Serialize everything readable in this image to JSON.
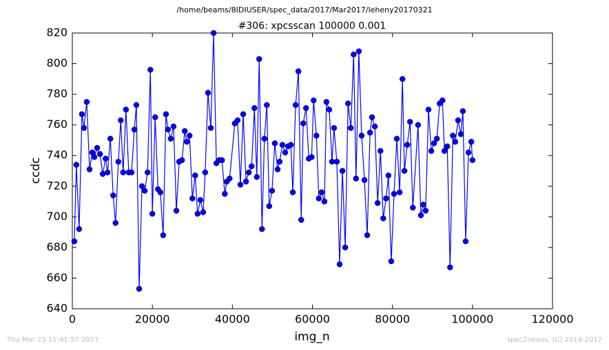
{
  "chart_data": {
    "type": "line",
    "suptitle": "/home/beams/8IDIUSER/spec_data/2017/Mar2017/leheny20170321",
    "title": "#306: xpcsscan 100000 0.001",
    "x_label": "img_n",
    "y_label": "ccdc",
    "footer_left": "Thu Mar 23 11:41:57 2017",
    "footer_right": "spec2nexus, (C) 2014-2017",
    "xlim": [
      0,
      120000
    ],
    "xticks": [
      0,
      20000,
      40000,
      60000,
      80000,
      100000,
      120000
    ],
    "ylim": [
      640,
      820
    ],
    "yticks": [
      640,
      660,
      680,
      700,
      720,
      740,
      760,
      780,
      800,
      820
    ],
    "grid": false,
    "color": "#0000ff",
    "marker": "circle",
    "x": [
      500,
      1000,
      1700,
      2400,
      2900,
      3600,
      4300,
      5000,
      5500,
      6200,
      6900,
      7600,
      8300,
      8800,
      9500,
      10200,
      10800,
      11500,
      12100,
      12700,
      13400,
      14100,
      14800,
      15500,
      16000,
      16700,
      17400,
      18100,
      18800,
      19500,
      20000,
      20700,
      21400,
      22000,
      22700,
      23400,
      23900,
      24600,
      25300,
      26000,
      26700,
      27400,
      28100,
      28600,
      29300,
      30000,
      30700,
      31300,
      32000,
      32700,
      33200,
      33900,
      34600,
      35300,
      36000,
      36700,
      37400,
      38100,
      38600,
      39300,
      40600,
      41300,
      42000,
      42700,
      43400,
      44100,
      44800,
      45500,
      46100,
      46700,
      47400,
      48000,
      48600,
      49200,
      49900,
      50600,
      51300,
      51800,
      52500,
      53200,
      53900,
      54600,
      55100,
      55800,
      56500,
      57200,
      57700,
      58400,
      59100,
      59800,
      60300,
      61000,
      61600,
      62300,
      63000,
      63500,
      64200,
      64900,
      65400,
      66100,
      66800,
      67500,
      68200,
      68900,
      69600,
      70300,
      70900,
      71600,
      72300,
      73000,
      73700,
      74400,
      74900,
      75600,
      76300,
      77000,
      77700,
      78400,
      79000,
      79700,
      80400,
      81100,
      81800,
      82500,
      83000,
      83700,
      84400,
      85100,
      86400,
      87100,
      87700,
      88300,
      89000,
      89700,
      90400,
      91100,
      91800,
      92500,
      93000,
      93700,
      94400,
      95100,
      95700,
      96400,
      97100,
      97600,
      98300,
      99000,
      99700,
      100000
    ],
    "values": [
      684,
      734,
      692,
      767,
      758,
      775,
      731,
      742,
      739,
      745,
      741,
      728,
      738,
      729,
      751,
      714,
      696,
      736,
      763,
      729,
      770,
      729,
      729,
      757,
      773,
      653,
      720,
      717,
      729,
      796,
      702,
      765,
      718,
      716,
      688,
      767,
      757,
      751,
      759,
      704,
      736,
      737,
      756,
      749,
      753,
      712,
      727,
      702,
      711,
      703,
      729,
      781,
      758,
      820,
      735,
      737,
      737,
      715,
      723,
      725,
      761,
      763,
      721,
      767,
      723,
      729,
      733,
      771,
      726,
      803,
      692,
      751,
      773,
      707,
      717,
      748,
      731,
      736,
      747,
      742,
      746,
      747,
      716,
      773,
      795,
      698,
      761,
      771,
      738,
      739,
      776,
      753,
      712,
      716,
      710,
      775,
      770,
      736,
      758,
      736,
      669,
      730,
      680,
      774,
      758,
      806,
      725,
      808,
      753,
      724,
      688,
      755,
      765,
      759,
      709,
      743,
      699,
      712,
      727,
      671,
      715,
      751,
      716,
      790,
      730,
      747,
      762,
      706,
      760,
      701,
      708,
      704,
      770,
      743,
      748,
      751,
      774,
      776,
      743,
      746,
      667,
      753,
      749,
      763,
      754,
      769,
      684,
      742,
      749,
      737
    ]
  }
}
